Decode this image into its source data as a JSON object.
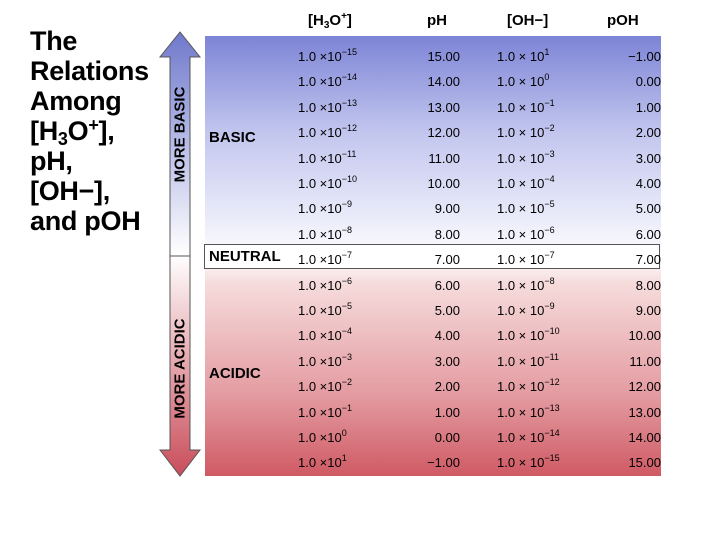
{
  "title": {
    "line1": "The",
    "line2": "Relations",
    "line3": "Among",
    "line4_a": "[H",
    "line4_sub": "3",
    "line4_b": "O",
    "line4_sup": "+",
    "line4_c": "],",
    "line5": "pH,",
    "line6": "[OH−],",
    "line7": "and pOH"
  },
  "headers": {
    "h3o_a": "[H",
    "h3o_sub": "3",
    "h3o_b": "O",
    "h3o_sup": "+",
    "h3o_c": "]",
    "ph": "pH",
    "oh": "[OH−]",
    "poh": "pOH"
  },
  "region_labels": {
    "basic": "BASIC",
    "neutral": "NEUTRAL",
    "acidic": "ACIDIC"
  },
  "arrow_labels": {
    "up": "MORE BASIC",
    "down": "MORE ACIDIC"
  },
  "colors": {
    "basic": "#7d84d6",
    "acidic": "#cf5a64",
    "arrow_up": "#6f78cc",
    "arrow_down": "#c94d5a"
  },
  "rows": [
    {
      "h_base": "1.0 ×10",
      "h_exp": "−15",
      "ph": "15.00",
      "oh_base": "1.0 × 10",
      "oh_exp": "1",
      "poh": "−1.00"
    },
    {
      "h_base": "1.0 ×10",
      "h_exp": "−14",
      "ph": "14.00",
      "oh_base": "1.0 × 10",
      "oh_exp": "0",
      "poh": "0.00"
    },
    {
      "h_base": "1.0 ×10",
      "h_exp": "−13",
      "ph": "13.00",
      "oh_base": "1.0 × 10",
      "oh_exp": "−1",
      "poh": "1.00"
    },
    {
      "h_base": "1.0 ×10",
      "h_exp": "−12",
      "ph": "12.00",
      "oh_base": "1.0 × 10",
      "oh_exp": "−2",
      "poh": "2.00"
    },
    {
      "h_base": "1.0 ×10",
      "h_exp": "−11",
      "ph": "11.00",
      "oh_base": "1.0 × 10",
      "oh_exp": "−3",
      "poh": "3.00"
    },
    {
      "h_base": "1.0 ×10",
      "h_exp": "−10",
      "ph": "10.00",
      "oh_base": "1.0 × 10",
      "oh_exp": "−4",
      "poh": "4.00"
    },
    {
      "h_base": "1.0 ×10",
      "h_exp": "−9",
      "ph": "9.00",
      "oh_base": "1.0 × 10",
      "oh_exp": "−5",
      "poh": "5.00"
    },
    {
      "h_base": "1.0 ×10",
      "h_exp": "−8",
      "ph": "8.00",
      "oh_base": "1.0 × 10",
      "oh_exp": "−6",
      "poh": "6.00"
    },
    {
      "h_base": "1.0 ×10",
      "h_exp": "−7",
      "ph": "7.00",
      "oh_base": "1.0 × 10",
      "oh_exp": "−7",
      "poh": "7.00"
    },
    {
      "h_base": "1.0 ×10",
      "h_exp": "−6",
      "ph": "6.00",
      "oh_base": "1.0 × 10",
      "oh_exp": "−8",
      "poh": "8.00"
    },
    {
      "h_base": "1.0 ×10",
      "h_exp": "−5",
      "ph": "5.00",
      "oh_base": "1.0 × 10",
      "oh_exp": "−9",
      "poh": "9.00"
    },
    {
      "h_base": "1.0 ×10",
      "h_exp": "−4",
      "ph": "4.00",
      "oh_base": "1.0 × 10",
      "oh_exp": "−10",
      "poh": "10.00"
    },
    {
      "h_base": "1.0 ×10",
      "h_exp": "−3",
      "ph": "3.00",
      "oh_base": "1.0 × 10",
      "oh_exp": "−11",
      "poh": "11.00"
    },
    {
      "h_base": "1.0 ×10",
      "h_exp": "−2",
      "ph": "2.00",
      "oh_base": "1.0 × 10",
      "oh_exp": "−12",
      "poh": "12.00"
    },
    {
      "h_base": "1.0 ×10",
      "h_exp": "−1",
      "ph": "1.00",
      "oh_base": "1.0 × 10",
      "oh_exp": "−13",
      "poh": "13.00"
    },
    {
      "h_base": "1.0 ×10",
      "h_exp": "0",
      "ph": "0.00",
      "oh_base": "1.0 × 10",
      "oh_exp": "−14",
      "poh": "14.00"
    },
    {
      "h_base": "1.0 ×10",
      "h_exp": "1",
      "ph": "−1.00",
      "oh_base": "1.0 × 10",
      "oh_exp": "−15",
      "poh": "15.00"
    }
  ]
}
